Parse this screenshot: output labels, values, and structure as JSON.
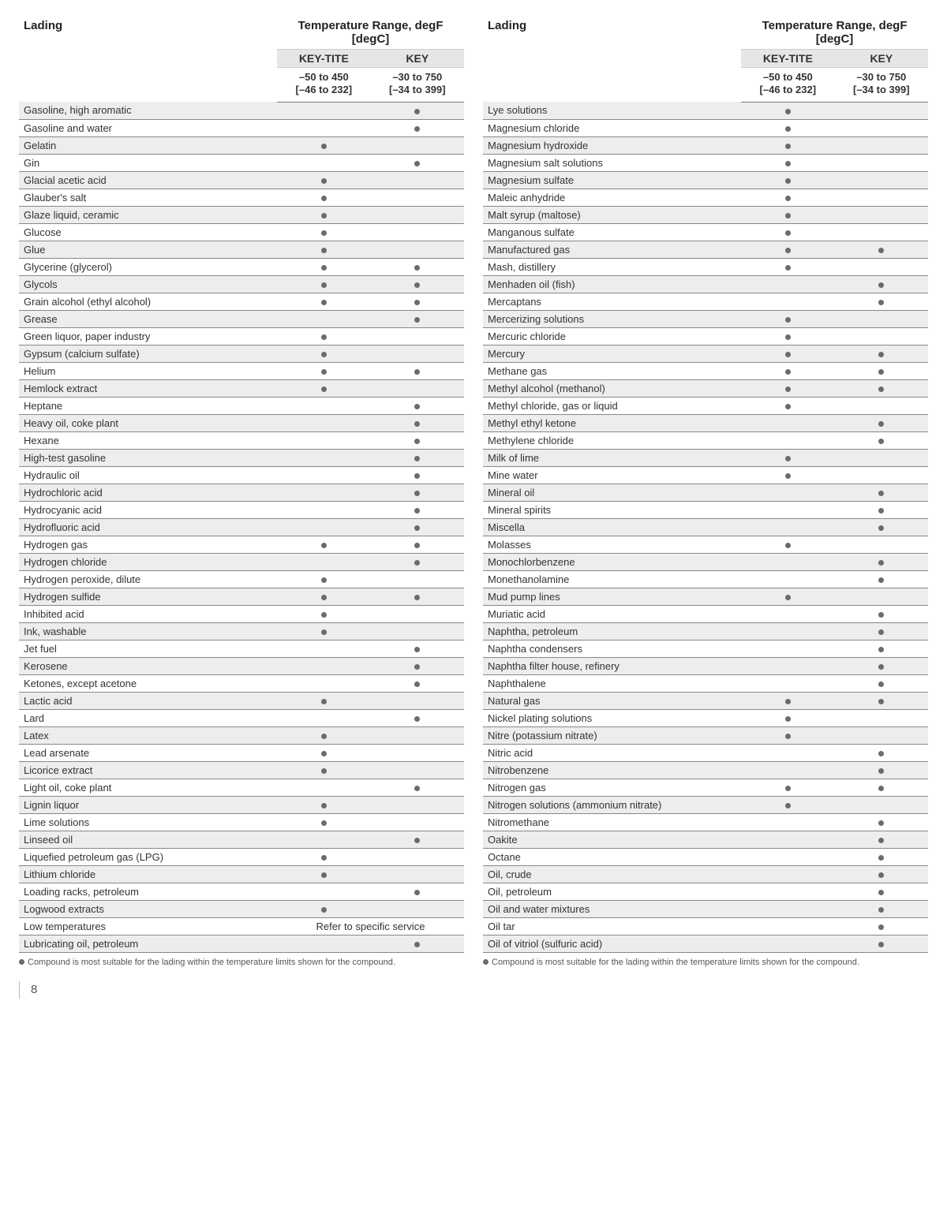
{
  "columns": {
    "lading": "Lading",
    "range": "Temperature Range, degF [degC]",
    "keytite": "KEY-TITE",
    "key": "KEY",
    "keytite_range": "–50 to 450\n[–46 to 232]",
    "key_range": "–30 to 750\n[–34 to 399]"
  },
  "footnote": "Compound is most suitable for the lading within the temperature limits shown for the compound.",
  "page_number": "8",
  "left": [
    {
      "n": "Gasoline, high aromatic",
      "a": false,
      "b": true
    },
    {
      "n": "Gasoline and water",
      "a": false,
      "b": true
    },
    {
      "n": "Gelatin",
      "a": true,
      "b": false
    },
    {
      "n": "Gin",
      "a": false,
      "b": true
    },
    {
      "n": "Glacial acetic acid",
      "a": true,
      "b": false
    },
    {
      "n": "Glauber's salt",
      "a": true,
      "b": false
    },
    {
      "n": "Glaze liquid, ceramic",
      "a": true,
      "b": false
    },
    {
      "n": "Glucose",
      "a": true,
      "b": false
    },
    {
      "n": "Glue",
      "a": true,
      "b": false
    },
    {
      "n": "Glycerine (glycerol)",
      "a": true,
      "b": true
    },
    {
      "n": "Glycols",
      "a": true,
      "b": true
    },
    {
      "n": "Grain alcohol (ethyl alcohol)",
      "a": true,
      "b": true
    },
    {
      "n": "Grease",
      "a": false,
      "b": true
    },
    {
      "n": "Green liquor, paper industry",
      "a": true,
      "b": false
    },
    {
      "n": "Gypsum (calcium sulfate)",
      "a": true,
      "b": false
    },
    {
      "n": "Helium",
      "a": true,
      "b": true
    },
    {
      "n": "Hemlock extract",
      "a": true,
      "b": false
    },
    {
      "n": "Heptane",
      "a": false,
      "b": true
    },
    {
      "n": "Heavy oil, coke plant",
      "a": false,
      "b": true
    },
    {
      "n": "Hexane",
      "a": false,
      "b": true
    },
    {
      "n": "High-test gasoline",
      "a": false,
      "b": true
    },
    {
      "n": "Hydraulic oil",
      "a": false,
      "b": true
    },
    {
      "n": "Hydrochloric acid",
      "a": false,
      "b": true
    },
    {
      "n": "Hydrocyanic acid",
      "a": false,
      "b": true
    },
    {
      "n": "Hydrofluoric acid",
      "a": false,
      "b": true
    },
    {
      "n": "Hydrogen gas",
      "a": true,
      "b": true
    },
    {
      "n": "Hydrogen chloride",
      "a": false,
      "b": true
    },
    {
      "n": "Hydrogen peroxide, dilute",
      "a": true,
      "b": false
    },
    {
      "n": "Hydrogen sulfide",
      "a": true,
      "b": true
    },
    {
      "n": "Inhibited acid",
      "a": true,
      "b": false
    },
    {
      "n": "Ink, washable",
      "a": true,
      "b": false
    },
    {
      "n": "Jet fuel",
      "a": false,
      "b": true
    },
    {
      "n": "Kerosene",
      "a": false,
      "b": true
    },
    {
      "n": "Ketones, except acetone",
      "a": false,
      "b": true
    },
    {
      "n": "Lactic acid",
      "a": true,
      "b": false
    },
    {
      "n": "Lard",
      "a": false,
      "b": true
    },
    {
      "n": "Latex",
      "a": true,
      "b": false
    },
    {
      "n": "Lead arsenate",
      "a": true,
      "b": false
    },
    {
      "n": "Licorice extract",
      "a": true,
      "b": false
    },
    {
      "n": "Light oil, coke plant",
      "a": false,
      "b": true
    },
    {
      "n": "Lignin liquor",
      "a": true,
      "b": false
    },
    {
      "n": "Lime solutions",
      "a": true,
      "b": false
    },
    {
      "n": "Linseed oil",
      "a": false,
      "b": true
    },
    {
      "n": "Liquefied petroleum gas (LPG)",
      "a": true,
      "b": false
    },
    {
      "n": "Lithium chloride",
      "a": true,
      "b": false
    },
    {
      "n": "Loading racks, petroleum",
      "a": false,
      "b": true
    },
    {
      "n": "Logwood extracts",
      "a": true,
      "b": false
    },
    {
      "n": "Low temperatures",
      "span": "Refer to specific service"
    },
    {
      "n": "Lubricating oil, petroleum",
      "a": false,
      "b": true
    }
  ],
  "right": [
    {
      "n": "Lye solutions",
      "a": true,
      "b": false
    },
    {
      "n": "Magnesium chloride",
      "a": true,
      "b": false
    },
    {
      "n": "Magnesium hydroxide",
      "a": true,
      "b": false
    },
    {
      "n": "Magnesium salt solutions",
      "a": true,
      "b": false
    },
    {
      "n": "Magnesium sulfate",
      "a": true,
      "b": false
    },
    {
      "n": "Maleic anhydride",
      "a": true,
      "b": false
    },
    {
      "n": "Malt syrup (maltose)",
      "a": true,
      "b": false
    },
    {
      "n": "Manganous sulfate",
      "a": true,
      "b": false
    },
    {
      "n": "Manufactured gas",
      "a": true,
      "b": true
    },
    {
      "n": "Mash, distillery",
      "a": true,
      "b": false
    },
    {
      "n": "Menhaden oil (fish)",
      "a": false,
      "b": true
    },
    {
      "n": "Mercaptans",
      "a": false,
      "b": true
    },
    {
      "n": "Mercerizing solutions",
      "a": true,
      "b": false
    },
    {
      "n": "Mercuric chloride",
      "a": true,
      "b": false
    },
    {
      "n": "Mercury",
      "a": true,
      "b": true
    },
    {
      "n": "Methane gas",
      "a": true,
      "b": true
    },
    {
      "n": "Methyl alcohol (methanol)",
      "a": true,
      "b": true
    },
    {
      "n": "Methyl chloride, gas or liquid",
      "a": true,
      "b": false
    },
    {
      "n": "Methyl ethyl ketone",
      "a": false,
      "b": true
    },
    {
      "n": "Methylene chloride",
      "a": false,
      "b": true
    },
    {
      "n": "Milk of lime",
      "a": true,
      "b": false
    },
    {
      "n": "Mine water",
      "a": true,
      "b": false
    },
    {
      "n": "Mineral oil",
      "a": false,
      "b": true
    },
    {
      "n": "Mineral spirits",
      "a": false,
      "b": true
    },
    {
      "n": "Miscella",
      "a": false,
      "b": true
    },
    {
      "n": "Molasses",
      "a": true,
      "b": false
    },
    {
      "n": "Monochlorbenzene",
      "a": false,
      "b": true
    },
    {
      "n": "Monethanolamine",
      "a": false,
      "b": true
    },
    {
      "n": "Mud pump lines",
      "a": true,
      "b": false
    },
    {
      "n": "Muriatic acid",
      "a": false,
      "b": true
    },
    {
      "n": "Naphtha, petroleum",
      "a": false,
      "b": true
    },
    {
      "n": "Naphtha condensers",
      "a": false,
      "b": true
    },
    {
      "n": "Naphtha filter house, refinery",
      "a": false,
      "b": true
    },
    {
      "n": "Naphthalene",
      "a": false,
      "b": true
    },
    {
      "n": "Natural gas",
      "a": true,
      "b": true
    },
    {
      "n": "Nickel plating solutions",
      "a": true,
      "b": false
    },
    {
      "n": "Nitre (potassium nitrate)",
      "a": true,
      "b": false
    },
    {
      "n": "Nitric acid",
      "a": false,
      "b": true
    },
    {
      "n": "Nitrobenzene",
      "a": false,
      "b": true
    },
    {
      "n": "Nitrogen gas",
      "a": true,
      "b": true
    },
    {
      "n": "Nitrogen solutions (ammonium nitrate)",
      "a": true,
      "b": false
    },
    {
      "n": "Nitromethane",
      "a": false,
      "b": true
    },
    {
      "n": "Oakite",
      "a": false,
      "b": true
    },
    {
      "n": "Octane",
      "a": false,
      "b": true
    },
    {
      "n": "Oil, crude",
      "a": false,
      "b": true
    },
    {
      "n": "Oil, petroleum",
      "a": false,
      "b": true
    },
    {
      "n": "Oil and water mixtures",
      "a": false,
      "b": true
    },
    {
      "n": "Oil tar",
      "a": false,
      "b": true
    },
    {
      "n": "Oil of vitriol (sulfuric acid)",
      "a": false,
      "b": true
    }
  ]
}
